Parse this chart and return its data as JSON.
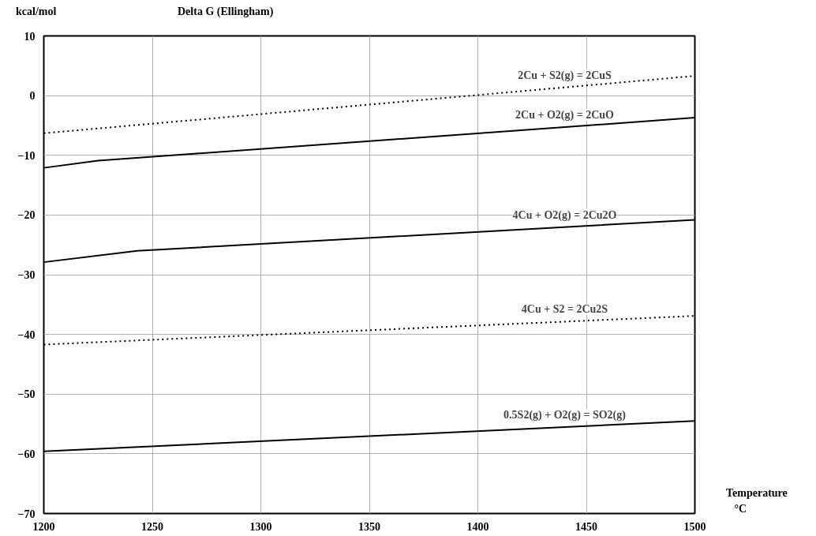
{
  "chart_data": {
    "type": "line",
    "title": "Delta G (Ellingham)",
    "xlabel": "Temperature °C",
    "ylabel": "kcal/mol",
    "xlim": [
      1200,
      1500
    ],
    "xticks": [
      1200,
      1250,
      1300,
      1350,
      1400,
      1450,
      1500
    ],
    "ylim": [
      -70,
      10
    ],
    "yticks": [
      -70,
      -60,
      -50,
      -40,
      -30,
      -20,
      -10,
      0,
      10
    ],
    "grid": true,
    "series": [
      {
        "name": "2Cu + S2(g) = 2CuS",
        "color": "#000000",
        "line_style": "dotted",
        "x": [
          1200,
          1500
        ],
        "values": [
          -6.3,
          3.3
        ]
      },
      {
        "name": "2Cu + O2(g) = 2CuO",
        "color": "#000000",
        "line_style": "solid",
        "x": [
          1200,
          1225,
          1500
        ],
        "values": [
          -12.1,
          -10.9,
          -3.7
        ]
      },
      {
        "name": "4Cu + O2(g) = 2Cu2O",
        "color": "#000000",
        "line_style": "solid",
        "x": [
          1200,
          1243,
          1500
        ],
        "values": [
          -27.9,
          -26.0,
          -20.8
        ]
      },
      {
        "name": "4Cu + S2 = 2Cu2S",
        "color": "#000000",
        "line_style": "dotted",
        "x": [
          1200,
          1500
        ],
        "values": [
          -41.7,
          -36.9
        ]
      },
      {
        "name": "0.5S2(g) + O2(g) = SO2(g)",
        "color": "#000000",
        "line_style": "solid",
        "x": [
          1200,
          1500
        ],
        "values": [
          -59.6,
          -54.5
        ]
      }
    ]
  }
}
